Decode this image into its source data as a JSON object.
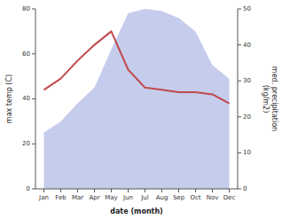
{
  "chart_data": {
    "type": "line",
    "categories": [
      "Jan",
      "Feb",
      "Mar",
      "Apr",
      "May",
      "Jun",
      "Jul",
      "Aug",
      "Sep",
      "Oct",
      "Nov",
      "Dec"
    ],
    "xlabel": "date (month)",
    "ylabel": "max temp (C)",
    "y2label": "med. precipitation\n(kg/m2)",
    "ylim": [
      0,
      80
    ],
    "yticks": [
      0,
      20,
      40,
      60,
      80
    ],
    "y2lim": [
      0,
      50
    ],
    "y2ticks": [
      0,
      10,
      20,
      30,
      40,
      50
    ],
    "series": [
      {
        "type": "area",
        "color": "#c5ccec",
        "values": [
          25,
          30,
          38,
          45,
          62,
          78,
          80,
          79,
          76,
          70,
          55,
          49
        ]
      },
      {
        "type": "line",
        "color": "#c0494b",
        "values": [
          44,
          49,
          57,
          64,
          70,
          53,
          45,
          44,
          43,
          43,
          42,
          38
        ]
      }
    ]
  }
}
